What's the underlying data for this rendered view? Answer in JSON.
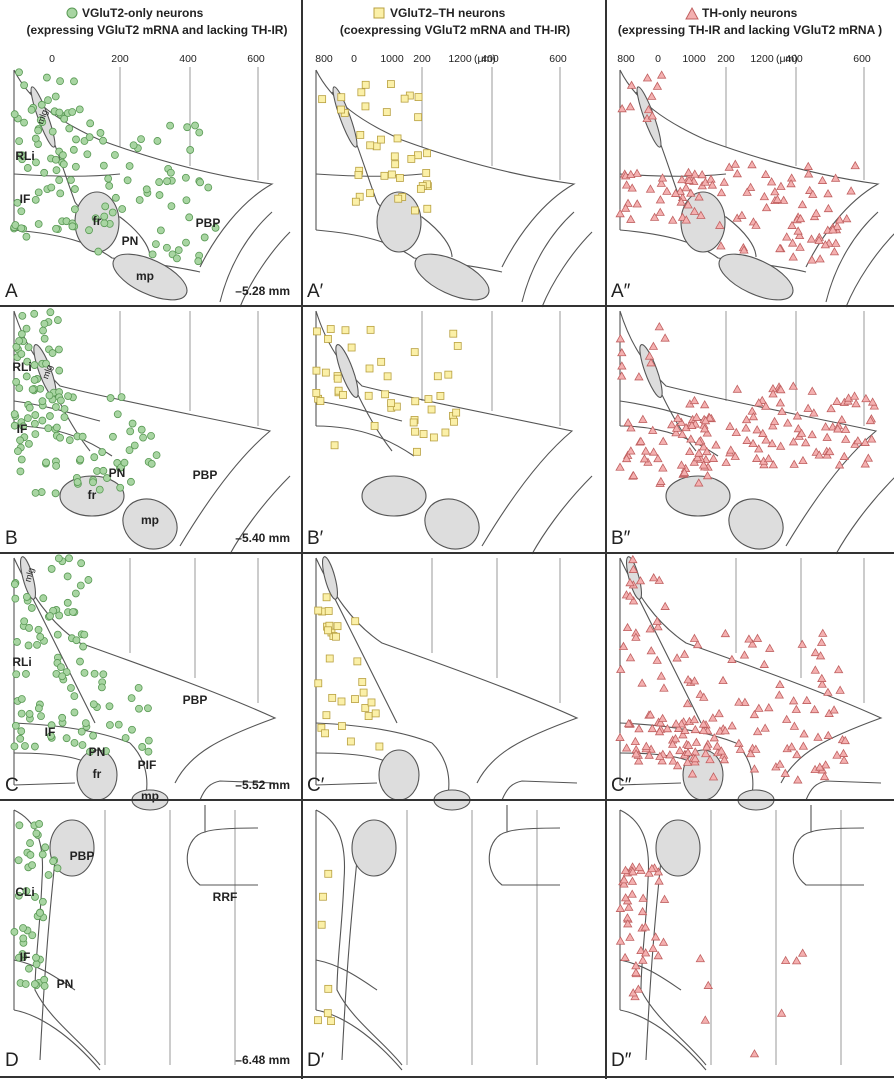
{
  "columns": [
    {
      "title": "VGluT2-only neurons",
      "subtitle": "(expressing VGluT2 mRNA and lacking TH-IR)"
    },
    {
      "title": "VGluT2–TH neurons",
      "subtitle": "(coexpressing VGluT2 mRNA and TH-IR)"
    },
    {
      "title": "TH-only neurons",
      "subtitle": "(expressing TH-IR and lacking VGluT2 mRNA )"
    }
  ],
  "scale_ticks": [
    "0",
    "200",
    "400",
    "600",
    "800",
    "1000",
    "1200"
  ],
  "scale_unit": "(μm)",
  "rows": [
    {
      "labels": [
        "A",
        "A′",
        "A″"
      ],
      "coordinate": "–5.28 mm",
      "regions": [
        "mlg",
        "RLi",
        "IF",
        "fr",
        "PN",
        "PBP",
        "mp"
      ]
    },
    {
      "labels": [
        "B",
        "B′",
        "B″"
      ],
      "coordinate": "–5.40 mm",
      "regions": [
        "mlg",
        "RLi",
        "IF",
        "PN",
        "fr",
        "mp",
        "PBP"
      ]
    },
    {
      "labels": [
        "C",
        "C′",
        "C″"
      ],
      "coordinate": "–5.52 mm",
      "regions": [
        "mlg",
        "RLi",
        "IF",
        "PN",
        "PBP",
        "PIF",
        "fr",
        "mp"
      ]
    },
    {
      "labels": [
        "D",
        "D′",
        "D″"
      ],
      "coordinate": "–6.48 mm",
      "regions": [
        "PBP",
        "CLi",
        "RRF",
        "IF",
        "PN"
      ]
    }
  ]
}
